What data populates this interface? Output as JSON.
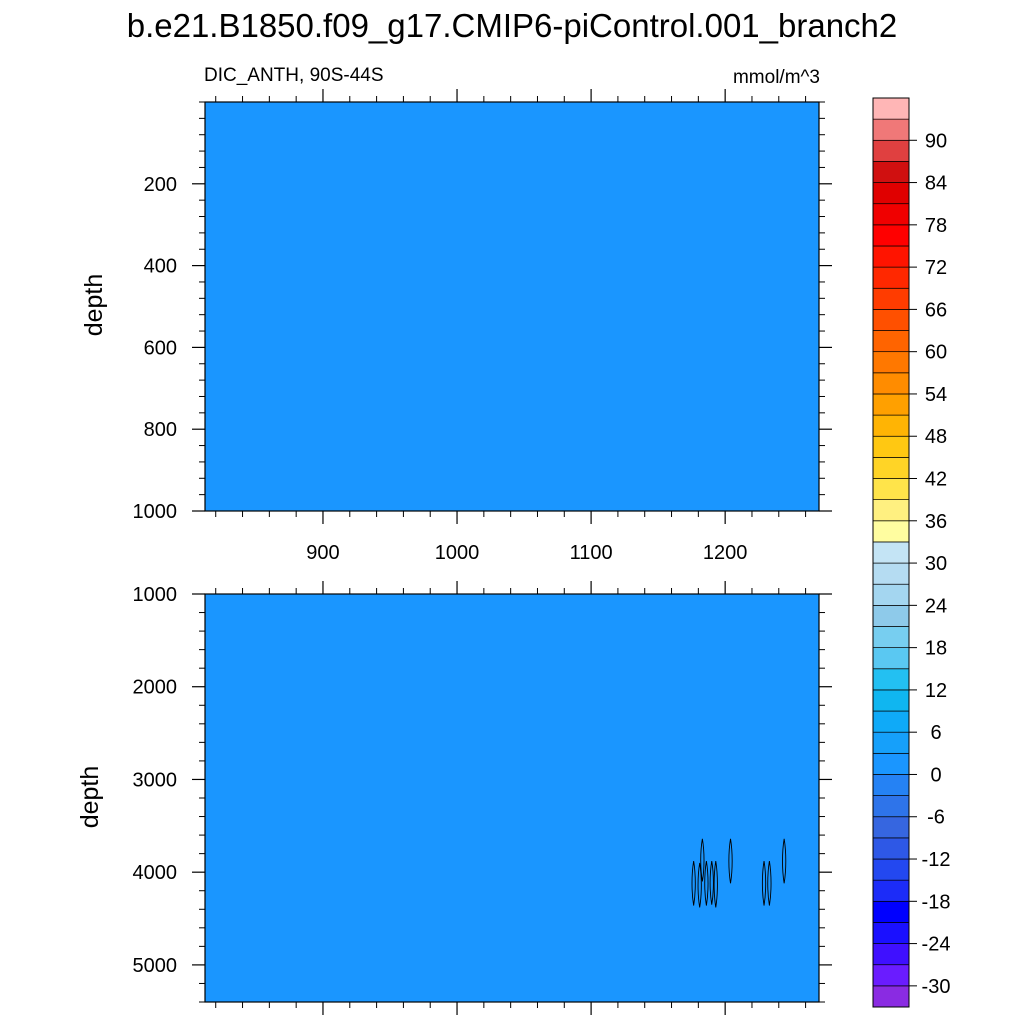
{
  "title": "b.e21.B1850.f09_g17.CMIP6-piControl.001_branch2",
  "subtitle_left": "DIC_ANTH, 90S-44S",
  "subtitle_right": "mmol/m^3",
  "chart_data": [
    {
      "type": "heatmap",
      "panel": "upper",
      "ylabel": "depth",
      "xlim": [
        812,
        1270
      ],
      "ylim": [
        1000,
        0
      ],
      "x_ticks": [
        900,
        1000,
        1100,
        1200
      ],
      "x_tick_labels": [
        "900",
        "1000",
        "1100",
        "1200"
      ],
      "y_ticks": [
        200,
        400,
        600,
        800,
        1000
      ],
      "y_tick_labels": [
        "200",
        "400",
        "600",
        "800",
        "1000"
      ],
      "fill_value_range": [
        0,
        3
      ],
      "fill_color": "#1a96ff"
    },
    {
      "type": "heatmap",
      "panel": "lower",
      "ylabel": "depth",
      "xlim": [
        812,
        1270
      ],
      "ylim": [
        5400,
        1000
      ],
      "x_ticks": [
        900,
        1000,
        1100,
        1200
      ],
      "y_ticks": [
        1000,
        2000,
        3000,
        4000,
        5000
      ],
      "y_tick_labels": [
        "1000",
        "2000",
        "3000",
        "4000",
        "5000"
      ],
      "fill_value_range": [
        0,
        3
      ],
      "fill_color": "#1a96ff",
      "contours": [
        {
          "x_center": 1176.5,
          "depth_top": 3880,
          "depth_bottom": 4360
        },
        {
          "x_center": 1181,
          "depth_top": 3900,
          "depth_bottom": 4380
        },
        {
          "x_center": 1183,
          "depth_top": 3640,
          "depth_bottom": 4100
        },
        {
          "x_center": 1186,
          "depth_top": 3880,
          "depth_bottom": 4360
        },
        {
          "x_center": 1190,
          "depth_top": 3880,
          "depth_bottom": 4350
        },
        {
          "x_center": 1193,
          "depth_top": 3880,
          "depth_bottom": 4380
        },
        {
          "x_center": 1204,
          "depth_top": 3640,
          "depth_bottom": 4120
        },
        {
          "x_center": 1229,
          "depth_top": 3880,
          "depth_bottom": 4360
        },
        {
          "x_center": 1233,
          "depth_top": 3880,
          "depth_bottom": 4360
        },
        {
          "x_center": 1244,
          "depth_top": 3640,
          "depth_bottom": 4120
        }
      ]
    }
  ],
  "colorbar": {
    "levels": [
      -33,
      -30,
      -27,
      -24,
      -21,
      -18,
      -15,
      -12,
      -9,
      -6,
      -3,
      0,
      3,
      6,
      9,
      12,
      15,
      18,
      21,
      24,
      27,
      30,
      33,
      36,
      39,
      42,
      45,
      48,
      51,
      54,
      57,
      60,
      63,
      66,
      69,
      72,
      75,
      78,
      81,
      84,
      87,
      90,
      93
    ],
    "colors": [
      "#8a2be2",
      "#6a1cff",
      "#3f10ff",
      "#1a10ff",
      "#0000ff",
      "#1c2cf8",
      "#2348f0",
      "#2e58e6",
      "#3666e0",
      "#2e74ea",
      "#2582f4",
      "#1a96ff",
      "#16a0fa",
      "#0faaf8",
      "#10b6f0",
      "#23c0f2",
      "#5ac8f2",
      "#77cef0",
      "#8ecaea",
      "#a4d6f0",
      "#b5dcf2",
      "#c4e4f5",
      "#fffda0",
      "#fff080",
      "#ffe44a",
      "#ffd426",
      "#ffc812",
      "#ffb404",
      "#ffa000",
      "#ff8c00",
      "#ff7800",
      "#ff6400",
      "#ff5000",
      "#ff3c00",
      "#ff2800",
      "#ff1400",
      "#ff0000",
      "#f00000",
      "#e00000",
      "#d01010",
      "#e04040",
      "#f07878",
      "#ffb6b6"
    ],
    "labels": [
      "-30",
      "-24",
      "-18",
      "-12",
      "-6",
      "0",
      "6",
      "12",
      "18",
      "24",
      "30",
      "36",
      "42",
      "48",
      "54",
      "60",
      "66",
      "72",
      "78",
      "84",
      "90"
    ],
    "label_values": [
      -30,
      -24,
      -18,
      -12,
      -6,
      0,
      6,
      12,
      18,
      24,
      30,
      36,
      42,
      48,
      54,
      60,
      66,
      72,
      78,
      84,
      90
    ]
  }
}
